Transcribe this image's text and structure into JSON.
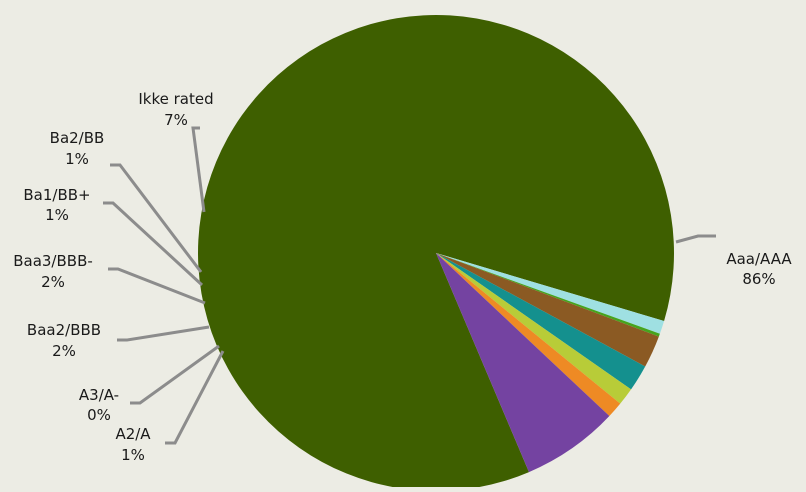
{
  "chart_data": {
    "type": "pie",
    "title": "",
    "background": "#ecece4",
    "leader_line_color": "#8c8c8c",
    "slices": [
      {
        "name": "Aaa/AAA",
        "label_value": "86%",
        "value": 86.0,
        "color": "#3e5f00"
      },
      {
        "name": "A2/A",
        "label_value": "1%",
        "value": 0.9,
        "color": "#9fe0e2"
      },
      {
        "name": "A3/A-",
        "label_value": "0%",
        "value": 0.2,
        "color": "#46a41e"
      },
      {
        "name": "Baa2/BBB",
        "label_value": "2%",
        "value": 2.2,
        "color": "#8b5a23"
      },
      {
        "name": "Baa3/BBB-",
        "label_value": "2%",
        "value": 1.8,
        "color": "#14908e"
      },
      {
        "name": "Ba1/BB+",
        "label_value": "1%",
        "value": 1.2,
        "color": "#b8cc38"
      },
      {
        "name": "Ba2/BB",
        "label_value": "1%",
        "value": 1.1,
        "color": "#ee8a24"
      },
      {
        "name": "Ikke rated",
        "label_value": "7%",
        "value": 6.6,
        "color": "#7443a1"
      }
    ]
  }
}
